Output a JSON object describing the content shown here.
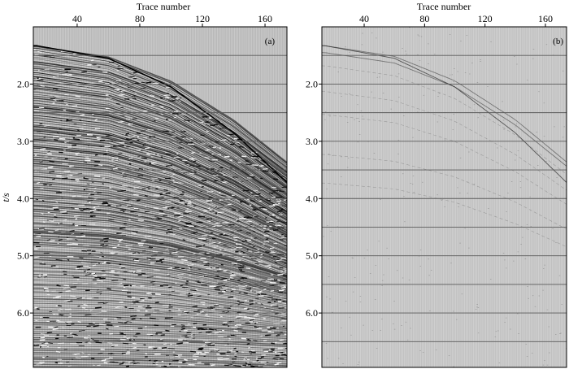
{
  "chart_data": [
    {
      "type": "seismic-gather",
      "panel_label": "(a)",
      "xlabel": "Trace number",
      "ylabel": "t/s",
      "x_ticks": [
        40,
        80,
        120,
        160
      ],
      "y_ticks": [
        2.0,
        3.0,
        4.0,
        5.0,
        6.0
      ],
      "x_tick_labels": [
        "40",
        "80",
        "120",
        "160"
      ],
      "y_tick_labels": [
        "2.0",
        "3.0",
        "4.0",
        "5.0",
        "6.0"
      ],
      "xlim": [
        12,
        174
      ],
      "ylim": [
        1.0,
        6.95
      ],
      "y_inverted": true,
      "hgrid": [
        1.5,
        2.0,
        2.5,
        3.0,
        3.5,
        4.0,
        4.5,
        5.0,
        5.5,
        6.0,
        6.5
      ],
      "first_arrival": [
        [
          14,
          1.33
        ],
        [
          60,
          1.55
        ],
        [
          100,
          2.05
        ],
        [
          140,
          2.85
        ],
        [
          174,
          3.72
        ]
      ],
      "amplitude": "strong",
      "background": "#c8c8c8"
    },
    {
      "type": "seismic-gather",
      "panel_label": "(b)",
      "xlabel": "Trace number",
      "ylabel": "",
      "x_ticks": [
        40,
        80,
        120,
        160
      ],
      "y_ticks": [
        2.0,
        3.0,
        4.0,
        5.0,
        6.0
      ],
      "x_tick_labels": [
        "40",
        "80",
        "120",
        "160"
      ],
      "y_tick_labels": [
        "2.0",
        "3.0",
        "4.0",
        "5.0",
        "6.0"
      ],
      "xlim": [
        12,
        174
      ],
      "ylim": [
        1.0,
        6.95
      ],
      "y_inverted": true,
      "hgrid": [
        1.5,
        2.0,
        2.5,
        3.0,
        3.5,
        4.0,
        4.5,
        5.0,
        5.5,
        6.0,
        6.5
      ],
      "first_arrival": [
        [
          14,
          1.33
        ],
        [
          60,
          1.55
        ],
        [
          100,
          2.05
        ],
        [
          140,
          2.85
        ],
        [
          174,
          3.72
        ]
      ],
      "amplitude": "weak",
      "background": "#cfcfcf"
    }
  ],
  "colors": {
    "panel_bg": "#c8c8c8",
    "grid": "#5a5a5a",
    "trace": "#1a1a1a"
  }
}
